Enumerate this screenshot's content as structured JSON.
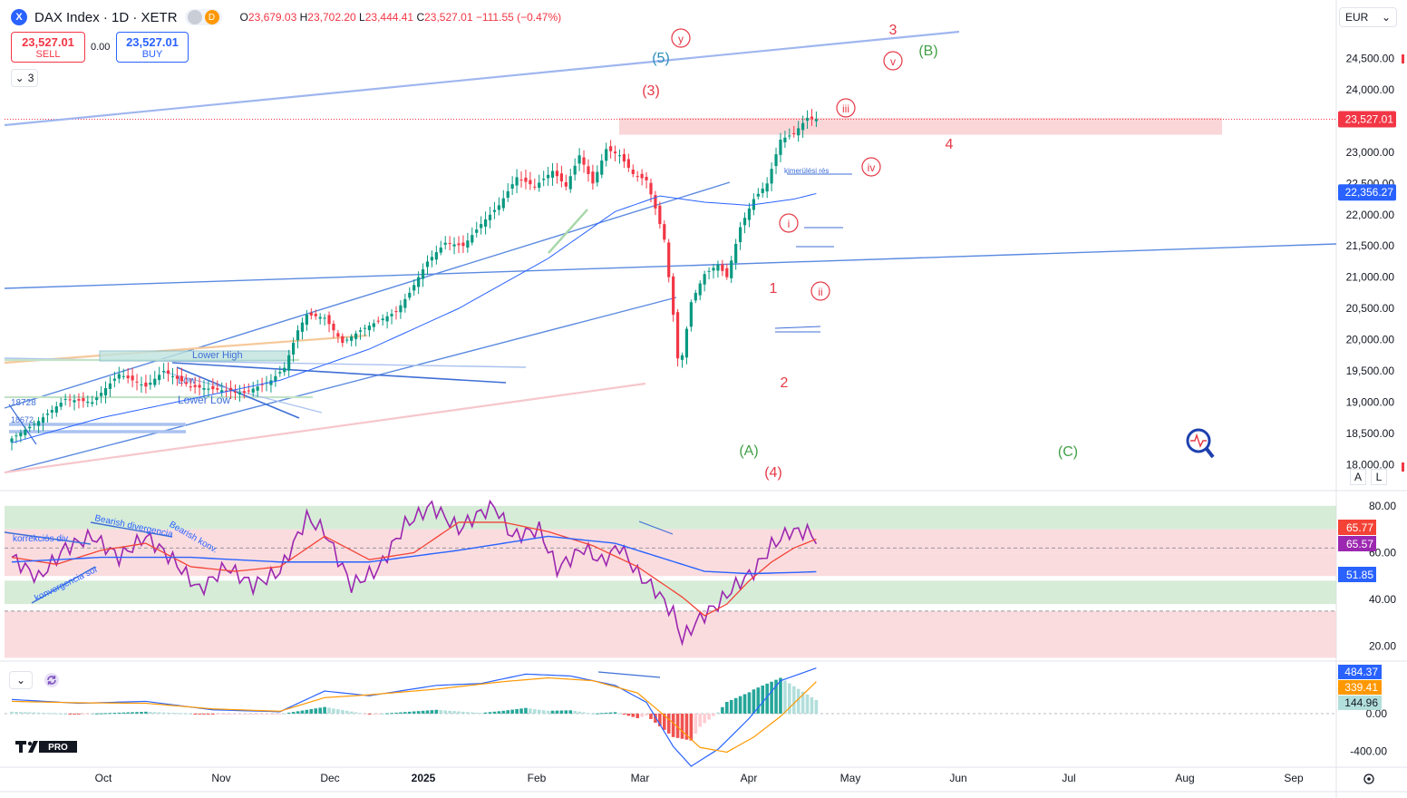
{
  "header": {
    "symbol_badge": "X",
    "symbol_title": "DAX Index · 1D · XETR",
    "d_badge": "D",
    "ohlc": {
      "o_label": "O",
      "o": "23,679.03",
      "h_label": "H",
      "h": "23,702.20",
      "l_label": "L",
      "l": "23,444.41",
      "c_label": "C",
      "c": "23,527.01",
      "change": "−111.55 (−0.47%)"
    }
  },
  "trade": {
    "sell_price": "23,527.01",
    "sell_label": "SELL",
    "buy_price": "23,527.01",
    "buy_label": "BUY",
    "spread": "0.00"
  },
  "indicator_toggle": {
    "label": "3",
    "chevron": "chevron-down-icon"
  },
  "currency": {
    "label": "EUR",
    "chevron": "chevron-down-icon"
  },
  "scale_buttons": {
    "auto": "A",
    "log": "L"
  },
  "logo_text": "PRO",
  "colors": {
    "up": "#089981",
    "down": "#f23645",
    "trendline": "#5b8ae0",
    "ma": "#2962ff",
    "rsi": "#9c27b0",
    "rsi_ma": "#f44336",
    "rsi_long": "#2962ff",
    "macd": "#2962ff",
    "signal": "#ff9800",
    "hist_up": "#26a69a",
    "hist_down": "#ef5350",
    "ew_red": "#e53946",
    "ew_green": "#43a047",
    "ew_teal": "#2c8ebf"
  },
  "chart_data": [
    {
      "type": "candlestick",
      "title": "DAX Index · 1D · XETR",
      "x_axis_labels": [
        "Oct",
        "Nov",
        "Dec",
        "2025",
        "Feb",
        "Mar",
        "Apr",
        "May",
        "Jun",
        "Jul",
        "Aug",
        "Sep"
      ],
      "y_ticks": [
        "24,500.00",
        "24,000.00",
        "23,000.00",
        "22,500.00",
        "22,000.00",
        "21,500.00",
        "21,000.00",
        "20,500.00",
        "20,000.00",
        "19,500.00",
        "19,000.00",
        "18,500.00",
        "18,000.00"
      ],
      "y_tick_values": [
        24500,
        24000,
        23000,
        22500,
        22000,
        21500,
        21000,
        20500,
        20000,
        19500,
        19000,
        18500,
        18000
      ],
      "ylim": [
        17600,
        25000
      ],
      "price_labels": [
        {
          "value": 23527.01,
          "text": "23,527.01",
          "color": "#f23645"
        },
        {
          "value": 22356.27,
          "text": "22,356.27",
          "color": "#2962ff"
        }
      ],
      "close_anchors": [
        [
          0,
          18420
        ],
        [
          6,
          18700
        ],
        [
          12,
          19050
        ],
        [
          18,
          19000
        ],
        [
          24,
          19450
        ],
        [
          30,
          19250
        ],
        [
          34,
          19500
        ],
        [
          40,
          19250
        ],
        [
          46,
          19200
        ],
        [
          52,
          19150
        ],
        [
          58,
          19350
        ],
        [
          61,
          19550
        ],
        [
          64,
          20150
        ],
        [
          66,
          20400
        ],
        [
          70,
          20350
        ],
        [
          74,
          19950
        ],
        [
          78,
          20150
        ],
        [
          82,
          20300
        ],
        [
          86,
          20450
        ],
        [
          89,
          20750
        ],
        [
          93,
          21250
        ],
        [
          97,
          21550
        ],
        [
          101,
          21500
        ],
        [
          105,
          21850
        ],
        [
          109,
          22150
        ],
        [
          113,
          22600
        ],
        [
          117,
          22450
        ],
        [
          121,
          22700
        ],
        [
          124,
          22450
        ],
        [
          127,
          22950
        ],
        [
          130,
          22500
        ],
        [
          133,
          23050
        ],
        [
          136,
          22950
        ],
        [
          139,
          22650
        ],
        [
          142,
          22550
        ],
        [
          144,
          22100
        ],
        [
          146,
          21600
        ],
        [
          148,
          20400
        ],
        [
          149,
          19700
        ],
        [
          150,
          19750
        ],
        [
          152,
          20600
        ],
        [
          155,
          21050
        ],
        [
          158,
          21200
        ],
        [
          160,
          21000
        ],
        [
          163,
          21800
        ],
        [
          166,
          22250
        ],
        [
          169,
          22500
        ],
        [
          172,
          23200
        ],
        [
          175,
          23300
        ],
        [
          178,
          23550
        ],
        [
          180,
          23527
        ]
      ],
      "ma_anchors": [
        [
          0,
          18350
        ],
        [
          20,
          18750
        ],
        [
          40,
          19050
        ],
        [
          60,
          19350
        ],
        [
          80,
          19850
        ],
        [
          100,
          20500
        ],
        [
          120,
          21300
        ],
        [
          135,
          22050
        ],
        [
          145,
          22300
        ],
        [
          155,
          22200
        ],
        [
          165,
          22150
        ],
        [
          175,
          22250
        ],
        [
          181,
          22356
        ]
      ],
      "elliott_labels": [
        {
          "text": "3",
          "color": "#e53946"
        },
        {
          "text": "(B)",
          "color": "#43a047"
        },
        {
          "text": "y",
          "color": "#e53946",
          "circled": true
        },
        {
          "text": "(5)",
          "color": "#2c8ebf"
        },
        {
          "text": "v",
          "color": "#e53946",
          "circled": true
        },
        {
          "text": "(3)",
          "color": "#e53946"
        },
        {
          "text": "iii",
          "color": "#e53946",
          "circled": true
        },
        {
          "text": "4",
          "color": "#e53946"
        },
        {
          "text": "iv",
          "color": "#e53946",
          "circled": true
        },
        {
          "text": "i",
          "color": "#e53946",
          "circled": true
        },
        {
          "text": "ii",
          "color": "#e53946",
          "circled": true
        },
        {
          "text": "1",
          "color": "#e53946"
        },
        {
          "text": "2",
          "color": "#e53946"
        },
        {
          "text": "(A)",
          "color": "#43a047"
        },
        {
          "text": "(4)",
          "color": "#e53946"
        },
        {
          "text": "(C)",
          "color": "#43a047"
        }
      ],
      "annotations": [
        "kimerülési rés",
        "Lower High",
        "Low",
        "Lower Low",
        "18728",
        "18672"
      ]
    },
    {
      "type": "line",
      "title": "",
      "y_ticks": [
        "80.00",
        "60.00",
        "40.00",
        "20.00"
      ],
      "y_tick_values": [
        80,
        60,
        40,
        20
      ],
      "ylim": [
        14,
        85
      ],
      "series": [
        {
          "name": "",
          "anchors": [
            [
              0,
              58
            ],
            [
              6,
              49
            ],
            [
              12,
              62
            ],
            [
              18,
              67
            ],
            [
              24,
              58
            ],
            [
              30,
              67
            ],
            [
              36,
              57
            ],
            [
              42,
              44
            ],
            [
              48,
              54
            ],
            [
              54,
              46
            ],
            [
              60,
              52
            ],
            [
              66,
              75
            ],
            [
              70,
              69
            ],
            [
              76,
              46
            ],
            [
              82,
              53
            ],
            [
              88,
              72
            ],
            [
              94,
              80
            ],
            [
              100,
              70
            ],
            [
              104,
              76
            ],
            [
              108,
              80
            ],
            [
              112,
              67
            ],
            [
              118,
              70
            ],
            [
              122,
              53
            ],
            [
              128,
              62
            ],
            [
              132,
              56
            ],
            [
              136,
              63
            ],
            [
              140,
              51
            ],
            [
              144,
              44
            ],
            [
              148,
              34
            ],
            [
              150,
              23
            ],
            [
              154,
              32
            ],
            [
              158,
              38
            ],
            [
              162,
              46
            ],
            [
              166,
              52
            ],
            [
              170,
              63
            ],
            [
              174,
              69
            ],
            [
              178,
              69
            ],
            [
              180,
              66
            ]
          ]
        },
        {
          "name": "",
          "anchors": [
            [
              0,
              58
            ],
            [
              10,
              55
            ],
            [
              20,
              61
            ],
            [
              30,
              64
            ],
            [
              40,
              54
            ],
            [
              50,
              52
            ],
            [
              60,
              54
            ],
            [
              70,
              67
            ],
            [
              80,
              57
            ],
            [
              90,
              60
            ],
            [
              100,
              73
            ],
            [
              110,
              73
            ],
            [
              120,
              69
            ],
            [
              130,
              63
            ],
            [
              140,
              54
            ],
            [
              150,
              41
            ],
            [
              155,
              33
            ],
            [
              160,
              38
            ],
            [
              165,
              48
            ],
            [
              170,
              56
            ],
            [
              175,
              62
            ],
            [
              180,
              65.8
            ]
          ]
        },
        {
          "name": "",
          "anchors": [
            [
              0,
              56
            ],
            [
              20,
              58
            ],
            [
              40,
              58
            ],
            [
              60,
              56
            ],
            [
              80,
              56
            ],
            [
              100,
              61
            ],
            [
              120,
              67
            ],
            [
              135,
              64
            ],
            [
              145,
              58
            ],
            [
              155,
              52
            ],
            [
              165,
              51
            ],
            [
              175,
              51.5
            ],
            [
              180,
              51.85
            ]
          ]
        }
      ],
      "value_labels": [
        "65.77",
        "65.57",
        "51.85"
      ],
      "annotations": [
        "korrekciós div.",
        "Bearish divergencia",
        "Bearish konv.",
        "konvergencia sor"
      ]
    },
    {
      "type": "bar",
      "title": "",
      "y_ticks": [
        "0.00",
        "-400.00"
      ],
      "y_tick_values": [
        0,
        -400
      ],
      "ylim": [
        -560,
        520
      ],
      "series": [
        {
          "name": "",
          "anchors": [
            [
              0,
              150
            ],
            [
              15,
              110
            ],
            [
              30,
              130
            ],
            [
              45,
              40
            ],
            [
              60,
              20
            ],
            [
              70,
              240
            ],
            [
              80,
              190
            ],
            [
              95,
              300
            ],
            [
              105,
              320
            ],
            [
              115,
              420
            ],
            [
              125,
              400
            ],
            [
              135,
              300
            ],
            [
              142,
              120
            ],
            [
              148,
              -350
            ],
            [
              152,
              -560
            ],
            [
              158,
              -380
            ],
            [
              165,
              -50
            ],
            [
              172,
              350
            ],
            [
              180,
              484.37
            ]
          ]
        },
        {
          "name": "",
          "anchors": [
            [
              0,
              130
            ],
            [
              15,
              115
            ],
            [
              30,
              110
            ],
            [
              45,
              50
            ],
            [
              60,
              25
            ],
            [
              70,
              170
            ],
            [
              80,
              200
            ],
            [
              95,
              260
            ],
            [
              110,
              340
            ],
            [
              120,
              380
            ],
            [
              130,
              350
            ],
            [
              140,
              220
            ],
            [
              148,
              -100
            ],
            [
              154,
              -360
            ],
            [
              160,
              -410
            ],
            [
              166,
              -250
            ],
            [
              172,
              -30
            ],
            [
              180,
              339.41
            ]
          ]
        }
      ],
      "value_labels": [
        "484.37",
        "339.41",
        "144.96"
      ]
    }
  ]
}
